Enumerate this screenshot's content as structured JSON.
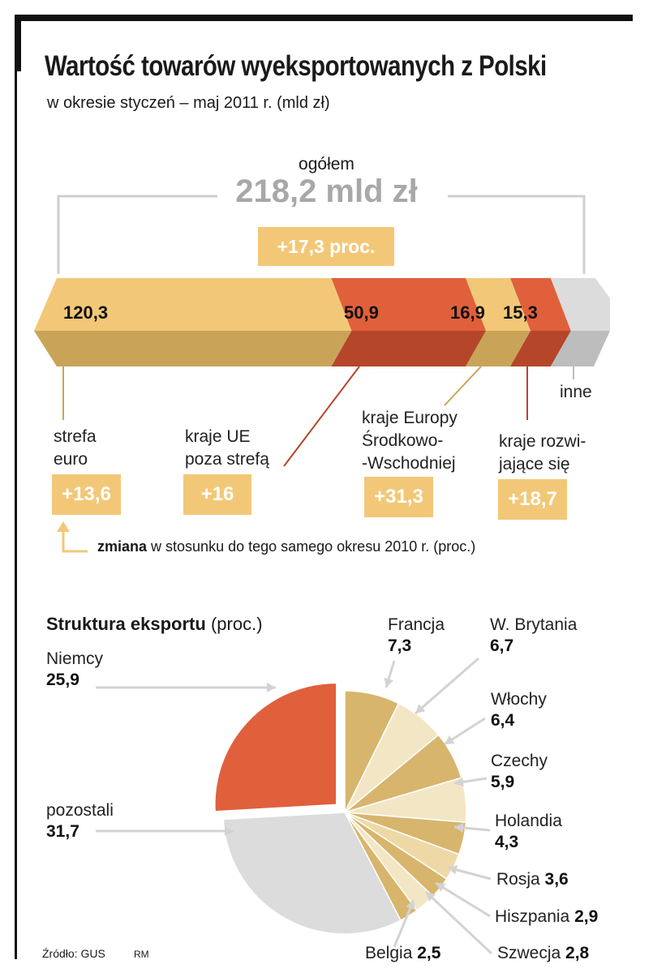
{
  "header": {
    "title": "Wartość towarów wyeksportowanych z Polski",
    "subtitle": "w okresie styczeń – maj 2011 r. (mld zł)"
  },
  "total": {
    "label": "ogółem",
    "value": "218,2 mld zł",
    "change": "+17,3 proc."
  },
  "colors": {
    "orange": "#f2c878",
    "red": "#e0603c",
    "tan": "#d8b56c",
    "cream1": "#eed9a6",
    "cream2": "#f3e6c4",
    "gray": "#dcdcdc"
  },
  "chart_data": [
    {
      "type": "bar",
      "title": "Wartość towarów wyeksportowanych z Polski",
      "unit": "mld zł",
      "total": 218.2,
      "segments": [
        {
          "label": "strefa euro",
          "value_label": "120,3",
          "value": 120.3,
          "change": "+13,6"
        },
        {
          "label": "kraje UE poza strefą",
          "value_label": "50,9",
          "value": 50.9,
          "change": "+16"
        },
        {
          "label": "kraje Europy Środkowo--Wschodniej",
          "value_label": "16,9",
          "value": 16.9,
          "change": "+31,3"
        },
        {
          "label": "kraje rozwijające się",
          "value_label": "15,3",
          "value": 15.3,
          "change": "+18,7"
        },
        {
          "label": "inne",
          "value": 14.8
        }
      ],
      "region_text": {
        "euro": [
          "strefa",
          "euro"
        ],
        "ue": [
          "kraje UE",
          "poza strefą"
        ],
        "ceeu": [
          "kraje Europy",
          "Środkowo-",
          "-Wschodniej"
        ],
        "dev": [
          "kraje rozwi-",
          "jające się"
        ],
        "other": "inne"
      },
      "note_bold": "zmiana",
      "note_rest": " w stosunku do tego samego okresu 2010 r. (proc.)"
    },
    {
      "type": "pie",
      "title": "Struktura eksportu",
      "unit": "(proc.)",
      "slices": [
        {
          "name": "Francja",
          "value": 7.3,
          "label": "7,3"
        },
        {
          "name": "W. Brytania",
          "value": 6.7,
          "label": "6,7"
        },
        {
          "name": "Włochy",
          "value": 6.4,
          "label": "6,4"
        },
        {
          "name": "Czechy",
          "value": 5.9,
          "label": "5,9"
        },
        {
          "name": "Holandia",
          "value": 4.3,
          "label": "4,3"
        },
        {
          "name": "Rosja",
          "value": 3.6,
          "label": "3,6"
        },
        {
          "name": "Hiszpania",
          "value": 2.9,
          "label": "2,9"
        },
        {
          "name": "Szwecja",
          "value": 2.8,
          "label": "2,8"
        },
        {
          "name": "Belgia",
          "value": 2.5,
          "label": "2,5"
        },
        {
          "name": "pozostali",
          "value": 31.7,
          "label": "31,7"
        },
        {
          "name": "Niemcy",
          "value": 25.9,
          "label": "25,9"
        }
      ]
    }
  ],
  "footer": {
    "source": "Źródło: GUS",
    "author": "RM"
  }
}
